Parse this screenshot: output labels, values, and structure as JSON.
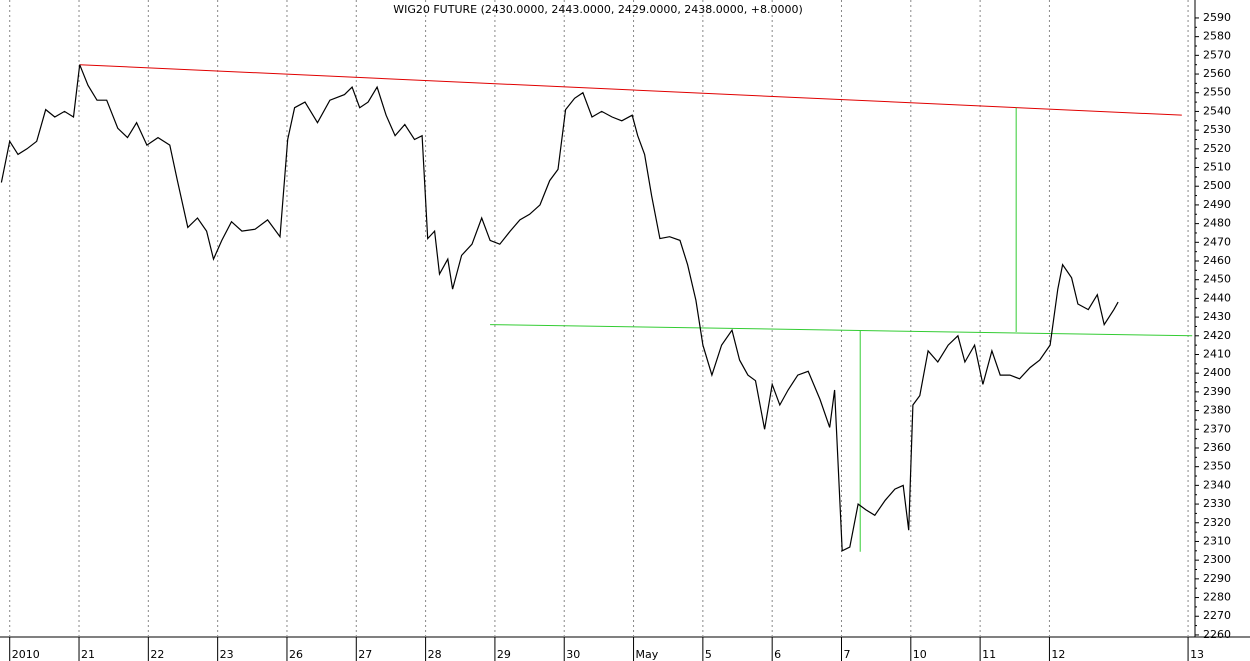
{
  "chart_data": {
    "type": "line",
    "title": "WIG20 FUTURE (2430.0000, 2443.0000, 2429.0000, 2438.0000, +8.0000)",
    "xlim": [
      -0.14,
      17.1
    ],
    "ylim": [
      2258.9,
      2599.6
    ],
    "xticks": [
      {
        "value": 0,
        "label": "2010"
      },
      {
        "value": 1,
        "label": "21"
      },
      {
        "value": 2,
        "label": "22"
      },
      {
        "value": 3,
        "label": "23"
      },
      {
        "value": 4,
        "label": "26"
      },
      {
        "value": 5,
        "label": "27"
      },
      {
        "value": 6,
        "label": "28"
      },
      {
        "value": 7,
        "label": "29"
      },
      {
        "value": 8,
        "label": "30"
      },
      {
        "value": 9,
        "label": "May"
      },
      {
        "value": 10,
        "label": "5"
      },
      {
        "value": 11,
        "label": "6"
      },
      {
        "value": 12,
        "label": "7"
      },
      {
        "value": 13,
        "label": "10"
      },
      {
        "value": 14,
        "label": "11"
      },
      {
        "value": 15,
        "label": "12"
      },
      {
        "value": 17,
        "label": "13"
      }
    ],
    "yticks": [
      2260,
      2270,
      2280,
      2290,
      2300,
      2310,
      2320,
      2330,
      2340,
      2350,
      2360,
      2370,
      2380,
      2390,
      2400,
      2410,
      2420,
      2430,
      2440,
      2450,
      2460,
      2470,
      2480,
      2490,
      2500,
      2510,
      2520,
      2530,
      2540,
      2550,
      2560,
      2570,
      2580,
      2590
    ],
    "grid": true,
    "x": [
      -0.12,
      0,
      0.12,
      0.25,
      0.39,
      0.52,
      0.65,
      0.79,
      0.92,
      1.01,
      1.13,
      1.26,
      1.4,
      1.56,
      1.7,
      1.83,
      1.98,
      2.14,
      2.31,
      2.42,
      2.57,
      2.71,
      2.84,
      2.94,
      3.06,
      3.2,
      3.35,
      3.54,
      3.72,
      3.9,
      4.01,
      4.11,
      4.26,
      4.44,
      4.62,
      4.83,
      4.94,
      5.05,
      5.17,
      5.3,
      5.43,
      5.56,
      5.7,
      5.84,
      5.95,
      6.03,
      6.13,
      6.2,
      6.32,
      6.39,
      6.52,
      6.67,
      6.81,
      6.93,
      7.07,
      7.22,
      7.36,
      7.5,
      7.65,
      7.79,
      7.91,
      8.02,
      8.15,
      8.27,
      8.4,
      8.54,
      8.69,
      8.83,
      8.98,
      9.06,
      9.16,
      9.26,
      9.38,
      9.52,
      9.67,
      9.78,
      9.9,
      10.0,
      10.13,
      10.27,
      10.42,
      10.53,
      10.65,
      10.76,
      10.89,
      11.0,
      11.11,
      11.23,
      11.37,
      11.52,
      11.69,
      11.83,
      11.9,
      12.01,
      12.12,
      12.24,
      12.35,
      12.48,
      12.63,
      12.77,
      12.89,
      12.97,
      13.03,
      13.13,
      13.25,
      13.39,
      13.54,
      13.68,
      13.78,
      13.92,
      14.04,
      14.17,
      14.29,
      14.43,
      14.57,
      14.72,
      14.86,
      15.01,
      15.12,
      15.19,
      15.32,
      15.41,
      15.56,
      15.69,
      15.79,
      15.93,
      15.99
    ],
    "series": [
      {
        "color": "#000000",
        "values": [
          2502,
          2524,
          2517,
          2520,
          2524,
          2541,
          2537,
          2540,
          2537,
          2565,
          2554,
          2546,
          2546,
          2531,
          2526,
          2534,
          2522,
          2526,
          2522,
          2503,
          2478,
          2483,
          2476,
          2461,
          2471,
          2481,
          2476,
          2477,
          2482,
          2473,
          2525,
          2542,
          2545,
          2534,
          2546,
          2549,
          2553,
          2542,
          2545,
          2553,
          2538,
          2527,
          2533,
          2525,
          2527,
          2472,
          2476,
          2453,
          2461,
          2445,
          2463,
          2469,
          2483,
          2471,
          2469,
          2476,
          2482,
          2485,
          2490,
          2503,
          2509,
          2541,
          2547,
          2550,
          2537,
          2540,
          2537,
          2535,
          2538,
          2527,
          2517,
          2495,
          2472,
          2473,
          2471,
          2458,
          2439,
          2415,
          2399,
          2415,
          2423,
          2407,
          2399,
          2396,
          2370,
          2394,
          2383,
          2391,
          2399,
          2401,
          2386,
          2371,
          2391,
          2305,
          2307,
          2330,
          2327,
          2324,
          2332,
          2338,
          2340,
          2316,
          2383,
          2388,
          2412,
          2406,
          2415,
          2420,
          2406,
          2415,
          2394,
          2412,
          2399,
          2399,
          2397,
          2403,
          2407,
          2415,
          2445,
          2458,
          2451,
          2437,
          2434,
          2442,
          2426,
          2434,
          2438
        ]
      }
    ],
    "trendlines": [
      {
        "color": "#e00000",
        "x": [
          1.01,
          16.91
        ],
        "values": [
          2565,
          2538
        ]
      },
      {
        "color": "#33cc33",
        "x": [
          6.93,
          17.06
        ],
        "values": [
          2426,
          2420
        ]
      },
      {
        "color": "#33cc33",
        "x": [
          12.27,
          12.27
        ],
        "values": [
          2423,
          2304.5
        ]
      },
      {
        "color": "#33cc33",
        "x": [
          14.52,
          14.52
        ],
        "values": [
          2542,
          2422
        ]
      }
    ]
  }
}
